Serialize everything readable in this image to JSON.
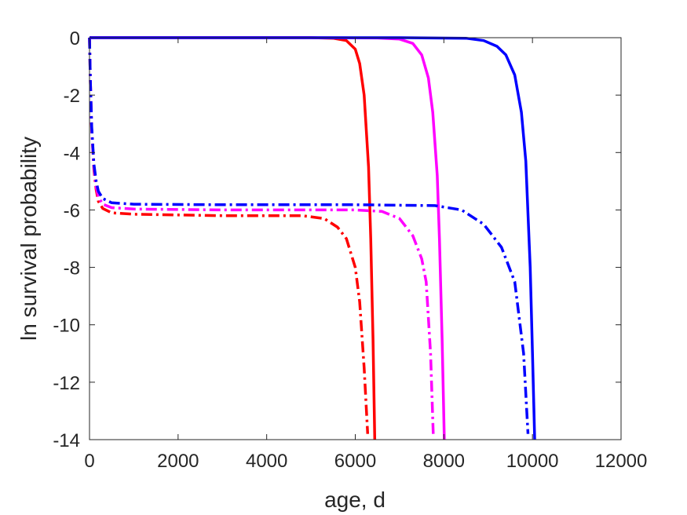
{
  "chart_data": {
    "type": "line",
    "title": "",
    "xlabel": "age, d",
    "ylabel": "ln survival probability",
    "xlim": [
      0,
      12000
    ],
    "ylim": [
      -14,
      0
    ],
    "xticks": [
      0,
      2000,
      4000,
      6000,
      8000,
      10000,
      12000
    ],
    "yticks": [
      0,
      -2,
      -4,
      -6,
      -8,
      -10,
      -12,
      -14
    ],
    "xtick_labels": [
      "0",
      "2000",
      "4000",
      "6000",
      "8000",
      "10000",
      "12000"
    ],
    "ytick_labels": [
      "0",
      "-2",
      "-4",
      "-6",
      "-8",
      "-10",
      "-12",
      "-14"
    ],
    "grid": false,
    "legend": "none",
    "series": [
      {
        "color": "#ff0000",
        "style": "solid",
        "x": [
          0,
          4000,
          5000,
          5500,
          5800,
          6000,
          6100,
          6200,
          6300,
          6350,
          6400,
          6440
        ],
        "y": [
          0,
          0,
          0,
          -0.02,
          -0.1,
          -0.4,
          -0.9,
          -2.0,
          -4.5,
          -7.0,
          -10.5,
          -14
        ]
      },
      {
        "color": "#ff00ff",
        "style": "solid",
        "x": [
          0,
          5000,
          6500,
          7000,
          7300,
          7500,
          7650,
          7750,
          7850,
          7900,
          7960,
          8010
        ],
        "y": [
          0,
          0,
          -0.01,
          -0.05,
          -0.2,
          -0.6,
          -1.4,
          -2.6,
          -4.8,
          -7.0,
          -10.5,
          -14
        ]
      },
      {
        "color": "#0000ff",
        "style": "solid",
        "x": [
          0,
          7000,
          8500,
          8900,
          9200,
          9400,
          9600,
          9750,
          9850,
          9950,
          10000,
          10050
        ],
        "y": [
          0,
          0,
          -0.02,
          -0.1,
          -0.3,
          -0.6,
          -1.3,
          -2.6,
          -4.3,
          -8.0,
          -11.0,
          -14
        ]
      },
      {
        "color": "#ff0000",
        "style": "dashdot",
        "x": [
          0,
          20,
          50,
          100,
          150,
          200,
          300,
          500,
          1000,
          3000,
          4800,
          5300,
          5600,
          5800,
          6000,
          6100,
          6200,
          6280
        ],
        "y": [
          0,
          -1.5,
          -3.2,
          -4.6,
          -5.3,
          -5.7,
          -5.95,
          -6.1,
          -6.15,
          -6.2,
          -6.2,
          -6.3,
          -6.6,
          -7.0,
          -8.0,
          -9.2,
          -11.5,
          -13.8
        ]
      },
      {
        "color": "#ff00ff",
        "style": "dashdot",
        "x": [
          0,
          20,
          50,
          100,
          150,
          200,
          300,
          500,
          1000,
          3000,
          6000,
          6600,
          7000,
          7300,
          7500,
          7600,
          7700,
          7760
        ],
        "y": [
          0,
          -1.5,
          -3.2,
          -4.5,
          -5.2,
          -5.55,
          -5.8,
          -5.92,
          -5.97,
          -6.0,
          -6.0,
          -6.05,
          -6.3,
          -6.9,
          -7.7,
          -8.5,
          -11.0,
          -13.8
        ]
      },
      {
        "color": "#0000ff",
        "style": "dashdot",
        "x": [
          0,
          20,
          50,
          100,
          150,
          200,
          300,
          500,
          1000,
          3000,
          6000,
          7800,
          8400,
          8900,
          9300,
          9600,
          9800,
          9900
        ],
        "y": [
          0,
          -1.5,
          -3.1,
          -4.4,
          -5.0,
          -5.35,
          -5.6,
          -5.75,
          -5.8,
          -5.82,
          -5.82,
          -5.85,
          -6.0,
          -6.5,
          -7.3,
          -8.5,
          -11.0,
          -13.8
        ]
      }
    ]
  }
}
